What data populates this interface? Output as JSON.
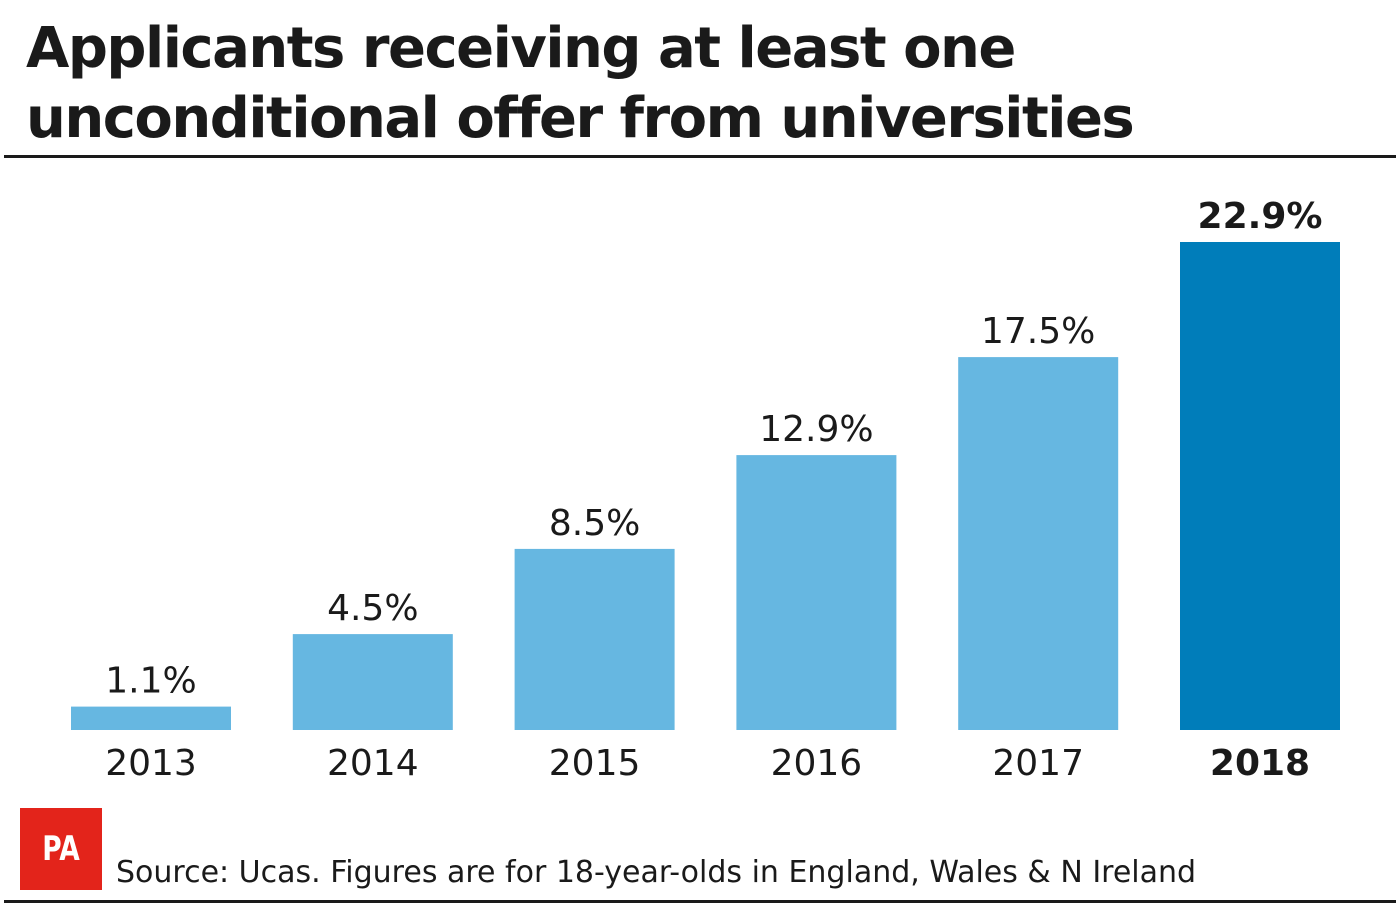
{
  "title": "Applicants receiving at least one unconditional offer from universities",
  "source": "Source: Ucas. Figures are for 18-year-olds in England, Wales & N Ireland",
  "logo_text": "PA",
  "colors": {
    "bar": "#66b7e1",
    "bar_highlight": "#007dba",
    "logo": "#e3241b",
    "text": "#1a1a1a"
  },
  "chart_data": {
    "type": "bar",
    "title": "Applicants receiving at least one unconditional offer from universities",
    "xlabel": "",
    "ylabel": "",
    "categories": [
      "2013",
      "2014",
      "2015",
      "2016",
      "2017",
      "2018"
    ],
    "values": [
      1.1,
      4.5,
      8.5,
      12.9,
      17.5,
      22.9
    ],
    "value_labels": [
      "1.1%",
      "4.5%",
      "8.5%",
      "12.9%",
      "17.5%",
      "22.9%"
    ],
    "highlight": "2018",
    "ylim": [
      0,
      22.9
    ],
    "grid": false,
    "legend": "none"
  }
}
